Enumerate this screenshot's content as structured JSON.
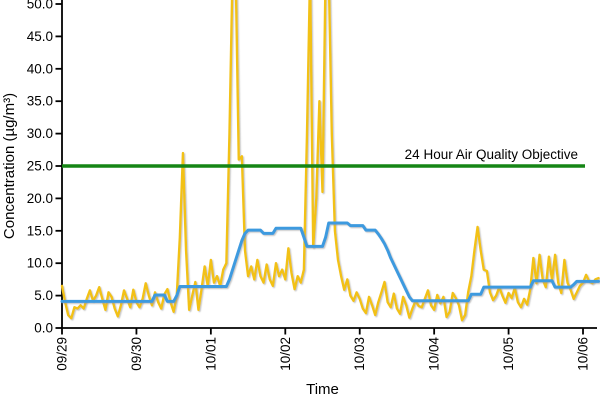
{
  "chart_data": {
    "type": "line",
    "xlabel": "Time",
    "ylabel": "Concentration (µg/m³)",
    "x_tick_labels": [
      "09/29",
      "09/30",
      "10/01",
      "10/02",
      "10/03",
      "10/04",
      "10/05",
      "10/06"
    ],
    "y_tick_labels": [
      "0.0",
      "5.0",
      "10.0",
      "15.0",
      "20.0",
      "25.0",
      "30.0",
      "35.0",
      "40.0",
      "45.0",
      "50.0"
    ],
    "ylim": [
      0,
      50
    ],
    "x_range_days": 7.25,
    "grid": "off",
    "legend": "none",
    "note": "top of plot clipped; spikes exceed 50",
    "objective_line": {
      "label": "24 Hour Air Quality Objective",
      "value": 25,
      "color": "#158515"
    },
    "axis_color": "#000000",
    "series": [
      {
        "id": "series-yellow-hourly",
        "color": "#F2C118",
        "width": 2.4,
        "x_step_hours": 1,
        "values": [
          6.5,
          4.0,
          2.0,
          1.5,
          3.2,
          3.0,
          3.5,
          3.0,
          4.5,
          5.8,
          4.2,
          5.0,
          6.3,
          4.5,
          2.8,
          5.5,
          4.8,
          3.0,
          1.8,
          3.5,
          5.8,
          4.5,
          3.2,
          5.9,
          4.0,
          3.2,
          4.5,
          6.9,
          5.0,
          3.5,
          5.5,
          4.0,
          3.0,
          5.2,
          6.0,
          4.0,
          2.5,
          5.0,
          14.0,
          27.0,
          12.0,
          2.8,
          5.0,
          7.1,
          2.8,
          6.0,
          9.5,
          6.5,
          10.5,
          7.0,
          8.0,
          6.5,
          9.0,
          10.0,
          30.0,
          55.0,
          55.0,
          26.0,
          26.5,
          12.0,
          8.0,
          9.5,
          7.5,
          10.5,
          8.0,
          7.0,
          9.8,
          7.5,
          6.5,
          10.0,
          8.0,
          9.0,
          7.5,
          12.3,
          8.5,
          6.0,
          8.0,
          7.0,
          9.0,
          30.0,
          55.0,
          12.5,
          20.0,
          35.0,
          21.0,
          55.0,
          55.0,
          30.0,
          15.0,
          10.5,
          8.0,
          5.9,
          7.5,
          5.0,
          4.2,
          5.5,
          4.5,
          3.0,
          2.3,
          4.8,
          3.5,
          2.0,
          4.0,
          5.5,
          7.1,
          4.0,
          3.2,
          5.3,
          3.0,
          2.2,
          4.8,
          3.5,
          1.6,
          3.0,
          4.2,
          3.4,
          3.2,
          4.5,
          5.8,
          3.5,
          2.8,
          5.1,
          3.8,
          4.8,
          1.7,
          2.5,
          5.4,
          4.6,
          3.5,
          1.2,
          2.0,
          5.6,
          8.0,
          12.0,
          15.6,
          12.0,
          9.0,
          8.8,
          5.5,
          4.3,
          5.0,
          6.3,
          5.0,
          3.9,
          5.4,
          4.6,
          6.2,
          4.0,
          3.2,
          4.5,
          3.6,
          6.0,
          10.8,
          6.9,
          11.3,
          7.5,
          6.3,
          11.0,
          7.4,
          11.3,
          7.0,
          5.4,
          10.5,
          7.0,
          5.9,
          4.5,
          5.5,
          6.5,
          7.0,
          8.2,
          7.2,
          6.9,
          7.5,
          7.7
        ]
      },
      {
        "id": "series-blue-average",
        "color": "#3E9ADF",
        "width": 3,
        "x_step_hours": 1,
        "values": [
          4.1,
          4.1,
          4.1,
          4.1,
          4.1,
          4.1,
          4.1,
          4.1,
          4.1,
          4.1,
          4.1,
          4.1,
          4.1,
          4.1,
          4.1,
          4.1,
          4.1,
          4.1,
          4.1,
          4.1,
          4.1,
          4.1,
          4.1,
          4.1,
          4.1,
          4.1,
          4.1,
          4.1,
          4.1,
          4.1,
          5.1,
          5.1,
          5.1,
          5.1,
          4.1,
          4.1,
          4.1,
          5.0,
          6.4,
          6.4,
          6.4,
          6.4,
          6.4,
          6.4,
          6.4,
          6.4,
          6.4,
          6.4,
          6.4,
          6.4,
          6.4,
          6.4,
          6.4,
          6.4,
          7.5,
          9.0,
          10.5,
          12.0,
          13.5,
          14.6,
          15.1,
          15.1,
          15.1,
          15.1,
          15.1,
          14.6,
          14.6,
          14.6,
          14.6,
          15.4,
          15.4,
          15.4,
          15.4,
          15.4,
          15.4,
          15.4,
          15.4,
          15.4,
          14.0,
          12.6,
          12.6,
          12.6,
          12.6,
          12.6,
          12.6,
          14.0,
          16.2,
          16.2,
          16.2,
          16.2,
          16.2,
          16.2,
          16.2,
          15.8,
          15.8,
          15.8,
          15.8,
          15.8,
          15.1,
          15.1,
          15.1,
          15.1,
          14.5,
          13.8,
          13.0,
          12.0,
          10.8,
          9.8,
          8.8,
          7.8,
          6.8,
          5.8,
          4.8,
          4.2,
          4.2,
          4.2,
          4.2,
          4.2,
          4.2,
          4.2,
          4.2,
          4.2,
          4.2,
          4.2,
          4.2,
          4.2,
          4.2,
          4.2,
          4.2,
          4.2,
          4.2,
          4.2,
          5.2,
          5.2,
          5.2,
          5.2,
          6.3,
          6.3,
          6.3,
          6.3,
          6.3,
          6.3,
          6.3,
          6.3,
          6.3,
          6.3,
          6.3,
          6.3,
          6.3,
          6.3,
          6.3,
          6.3,
          7.3,
          7.3,
          7.3,
          7.3,
          7.3,
          7.3,
          7.3,
          6.3,
          6.3,
          6.3,
          6.3,
          6.3,
          6.3,
          6.7,
          7.2,
          7.2,
          7.2,
          7.2,
          7.2,
          7.2,
          7.2,
          7.2
        ]
      }
    ]
  }
}
